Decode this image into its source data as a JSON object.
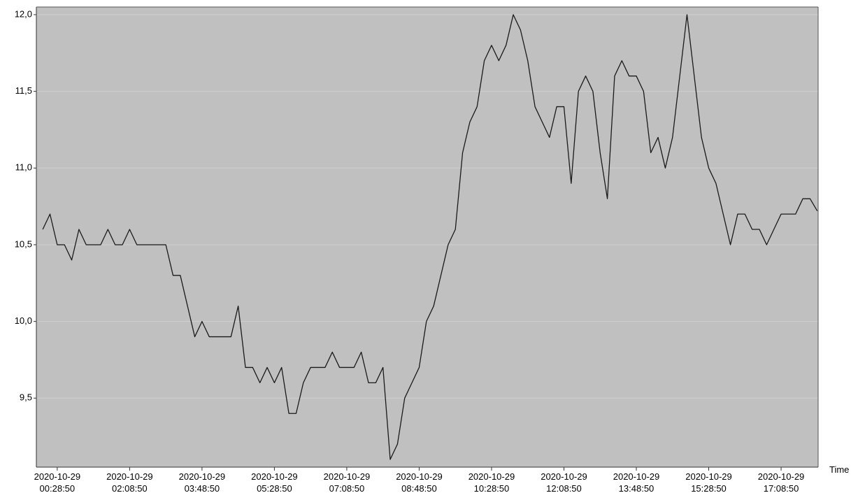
{
  "chart_data": {
    "type": "line",
    "xlabel": "Time",
    "xlim": [
      "2020-10-29 00:00:00",
      "2020-10-29 18:00:00"
    ],
    "xticks": [
      "2020-10-29 00:28:50",
      "2020-10-29 02:08:50",
      "2020-10-29 03:48:50",
      "2020-10-29 05:28:50",
      "2020-10-29 07:08:50",
      "2020-10-29 08:48:50",
      "2020-10-29 10:28:50",
      "2020-10-29 12:08:50",
      "2020-10-29 13:48:50",
      "2020-10-29 15:28:50",
      "2020-10-29 17:08:50"
    ],
    "ylim": [
      9.05,
      12.05
    ],
    "yticks": [
      {
        "value": 9.5,
        "label": "9,5"
      },
      {
        "value": 10.0,
        "label": "10,0"
      },
      {
        "value": 10.5,
        "label": "10,5"
      },
      {
        "value": 11.0,
        "label": "11,0"
      },
      {
        "value": 11.5,
        "label": "11,5"
      },
      {
        "value": 12.0,
        "label": "12,0"
      }
    ],
    "grid": true,
    "background": "#c0c0c0",
    "x": [
      "2020-10-29 00:08:50",
      "2020-10-29 00:18:50",
      "2020-10-29 00:28:50",
      "2020-10-29 00:38:50",
      "2020-10-29 00:48:50",
      "2020-10-29 00:58:50",
      "2020-10-29 01:08:50",
      "2020-10-29 01:18:50",
      "2020-10-29 01:28:50",
      "2020-10-29 01:38:50",
      "2020-10-29 01:48:50",
      "2020-10-29 01:58:50",
      "2020-10-29 02:08:50",
      "2020-10-29 02:18:50",
      "2020-10-29 02:28:50",
      "2020-10-29 02:38:50",
      "2020-10-29 02:48:50",
      "2020-10-29 02:58:50",
      "2020-10-29 03:08:50",
      "2020-10-29 03:18:50",
      "2020-10-29 03:28:50",
      "2020-10-29 03:38:50",
      "2020-10-29 03:48:50",
      "2020-10-29 03:58:50",
      "2020-10-29 04:08:50",
      "2020-10-29 04:18:50",
      "2020-10-29 04:28:50",
      "2020-10-29 04:38:50",
      "2020-10-29 04:48:50",
      "2020-10-29 04:58:50",
      "2020-10-29 05:08:50",
      "2020-10-29 05:18:50",
      "2020-10-29 05:28:50",
      "2020-10-29 05:38:50",
      "2020-10-29 05:48:50",
      "2020-10-29 05:58:50",
      "2020-10-29 06:08:50",
      "2020-10-29 06:18:50",
      "2020-10-29 06:28:50",
      "2020-10-29 06:38:50",
      "2020-10-29 06:48:50",
      "2020-10-29 06:58:50",
      "2020-10-29 07:08:50",
      "2020-10-29 07:18:50",
      "2020-10-29 07:28:50",
      "2020-10-29 07:38:50",
      "2020-10-29 07:48:50",
      "2020-10-29 07:58:50",
      "2020-10-29 08:08:50",
      "2020-10-29 08:18:50",
      "2020-10-29 08:28:50",
      "2020-10-29 08:38:50",
      "2020-10-29 08:48:50",
      "2020-10-29 08:58:50",
      "2020-10-29 09:08:50",
      "2020-10-29 09:18:50",
      "2020-10-29 09:28:50",
      "2020-10-29 09:38:50",
      "2020-10-29 09:48:50",
      "2020-10-29 09:58:50",
      "2020-10-29 10:08:50",
      "2020-10-29 10:18:50",
      "2020-10-29 10:28:50",
      "2020-10-29 10:38:50",
      "2020-10-29 10:48:50",
      "2020-10-29 10:58:50",
      "2020-10-29 11:08:50",
      "2020-10-29 11:18:50",
      "2020-10-29 11:28:50",
      "2020-10-29 11:38:50",
      "2020-10-29 11:48:50",
      "2020-10-29 11:58:50",
      "2020-10-29 12:08:50",
      "2020-10-29 12:18:50",
      "2020-10-29 12:28:50",
      "2020-10-29 12:38:50",
      "2020-10-29 12:48:50",
      "2020-10-29 12:58:50",
      "2020-10-29 13:08:50",
      "2020-10-29 13:18:50",
      "2020-10-29 13:28:50",
      "2020-10-29 13:38:50",
      "2020-10-29 13:48:50",
      "2020-10-29 13:58:50",
      "2020-10-29 14:08:50",
      "2020-10-29 14:18:50",
      "2020-10-29 14:28:50",
      "2020-10-29 14:38:50",
      "2020-10-29 14:48:50",
      "2020-10-29 14:58:50",
      "2020-10-29 15:08:50",
      "2020-10-29 15:18:50",
      "2020-10-29 15:28:50",
      "2020-10-29 15:38:50",
      "2020-10-29 15:48:50",
      "2020-10-29 15:58:50",
      "2020-10-29 16:08:50",
      "2020-10-29 16:18:50",
      "2020-10-29 16:28:50",
      "2020-10-29 16:38:50",
      "2020-10-29 16:48:50",
      "2020-10-29 16:58:50",
      "2020-10-29 17:08:50",
      "2020-10-29 17:18:50",
      "2020-10-29 17:28:50",
      "2020-10-29 17:38:50",
      "2020-10-29 17:48:50",
      "2020-10-29 17:58:50"
    ],
    "series": [
      {
        "color": "#1a1a1a",
        "values": [
          10.6,
          10.7,
          10.5,
          10.5,
          10.4,
          10.6,
          10.5,
          10.5,
          10.5,
          10.6,
          10.5,
          10.5,
          10.6,
          10.5,
          10.5,
          10.5,
          10.5,
          10.5,
          10.3,
          10.3,
          10.1,
          9.9,
          10.0,
          9.9,
          9.9,
          9.9,
          9.9,
          10.1,
          9.7,
          9.7,
          9.6,
          9.7,
          9.6,
          9.7,
          9.4,
          9.4,
          9.6,
          9.7,
          9.7,
          9.7,
          9.8,
          9.7,
          9.7,
          9.7,
          9.8,
          9.6,
          9.6,
          9.7,
          9.1,
          9.2,
          9.5,
          9.6,
          9.7,
          10.0,
          10.1,
          10.3,
          10.5,
          10.6,
          11.1,
          11.3,
          11.4,
          11.7,
          11.8,
          11.7,
          11.8,
          12.0,
          11.9,
          11.7,
          11.4,
          11.3,
          11.2,
          11.4,
          11.4,
          10.9,
          11.5,
          11.6,
          11.5,
          11.1,
          10.8,
          11.6,
          11.7,
          11.6,
          11.6,
          11.5,
          11.1,
          11.2,
          11.0,
          11.2,
          11.6,
          12.0,
          11.6,
          11.2,
          11.0,
          10.9,
          10.7,
          10.5,
          10.7,
          10.7,
          10.6,
          10.6,
          10.5,
          10.6,
          10.7,
          10.7,
          10.7,
          10.8,
          10.8,
          10.72
        ]
      }
    ]
  }
}
